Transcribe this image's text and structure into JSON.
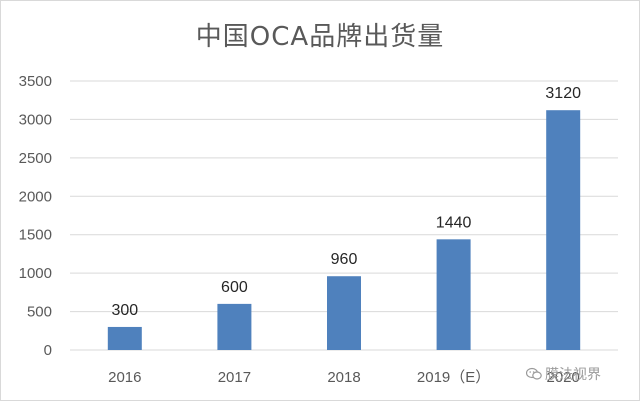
{
  "chart_data": {
    "type": "bar",
    "title": "中国OCA品牌出货量",
    "categories": [
      "2016",
      "2017",
      "2018",
      "2019（E）",
      "2020"
    ],
    "values": [
      300,
      600,
      960,
      1440,
      3120
    ],
    "ylim": [
      0,
      3500
    ],
    "yticks": [
      0,
      500,
      1000,
      1500,
      2000,
      2500,
      3000,
      3500
    ],
    "grid": true,
    "legend": "none",
    "bar_color": "#4f81bd",
    "grid_color": "#d9d9d9"
  },
  "watermark": {
    "text": "膜法视界",
    "icon": "wechat-logo-icon"
  }
}
